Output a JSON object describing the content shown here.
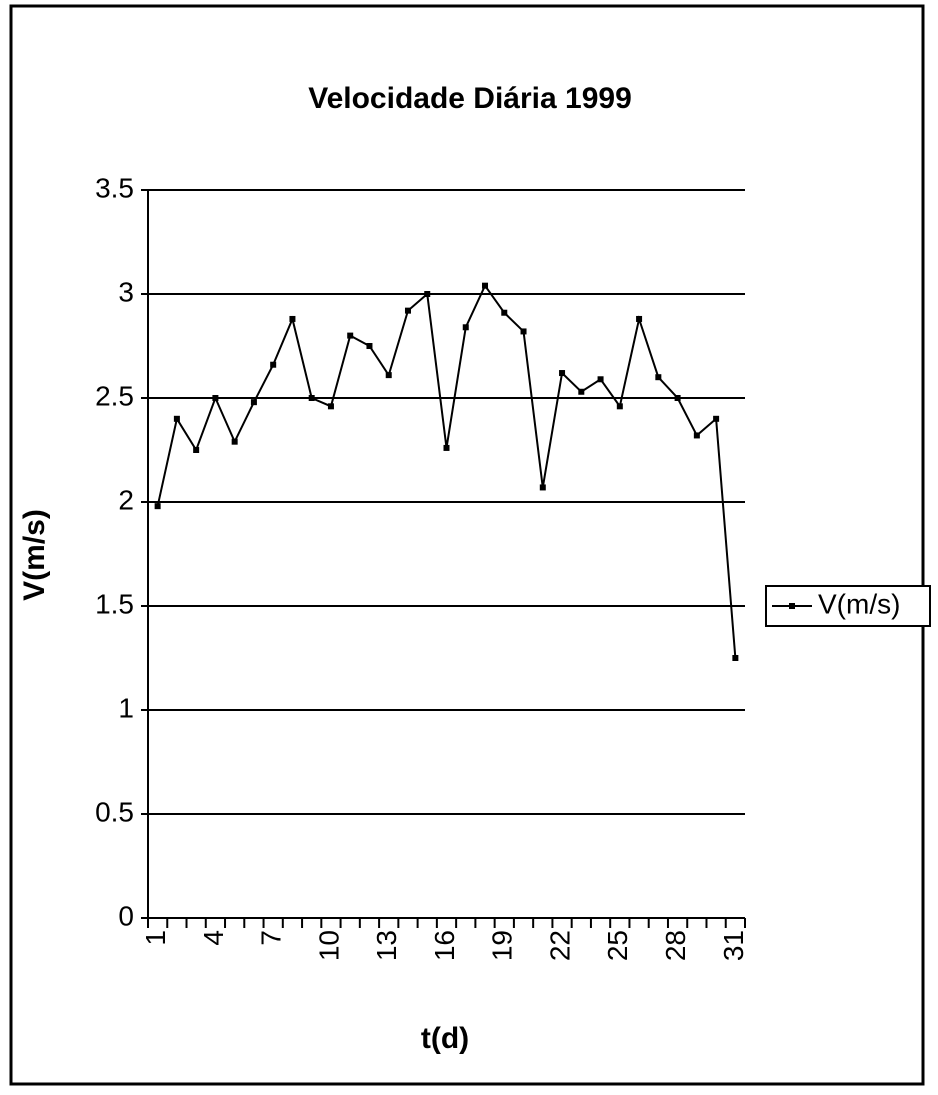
{
  "chart_data": {
    "type": "line",
    "title": "Velocidade Diária 1999",
    "x_label": "t(d)",
    "y_label": "V(m/s)",
    "categories": [
      "1",
      null,
      null,
      "4",
      null,
      null,
      "7",
      null,
      null,
      "10",
      null,
      null,
      "13",
      null,
      null,
      "16",
      null,
      null,
      "19",
      null,
      null,
      "22",
      null,
      null,
      "25",
      null,
      null,
      "28",
      null,
      null,
      "31"
    ],
    "series": [
      {
        "name": "V(m/s)",
        "color": "#000000",
        "values": [
          1.98,
          2.4,
          2.25,
          2.5,
          2.29,
          2.48,
          2.66,
          2.88,
          2.5,
          2.46,
          2.8,
          2.75,
          2.61,
          2.92,
          3.0,
          2.26,
          2.84,
          3.04,
          2.91,
          2.82,
          2.07,
          2.62,
          2.53,
          2.59,
          2.46,
          2.88,
          2.6,
          2.5,
          2.32,
          2.4,
          1.25
        ]
      }
    ],
    "ylim": [
      0,
      3.5
    ],
    "yticks": [
      0,
      0.5,
      1,
      1.5,
      2,
      2.5,
      3,
      3.5
    ],
    "grid": true,
    "legend": "right"
  }
}
